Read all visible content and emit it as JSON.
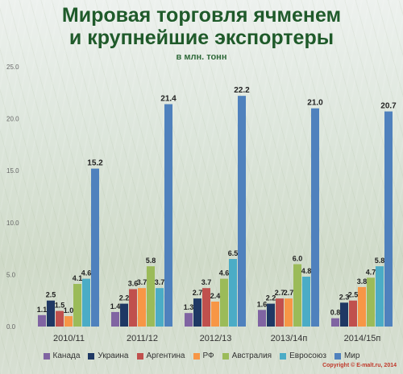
{
  "header": {
    "title_line1": "Мировая торговля ячменем",
    "title_line2": "и крупнейшие экспортеры",
    "subtitle": "в млн. тонн"
  },
  "copyright": "Copyright © E-malt.ru, 2014",
  "chart_data": {
    "type": "bar",
    "categories": [
      "2010/11",
      "2011/12",
      "2012/13",
      "2013/14п",
      "2014/15п"
    ],
    "ylim": [
      0,
      25
    ],
    "yticks": [
      "0.0",
      "5.0",
      "10.0",
      "15.0",
      "20.0",
      "25.0"
    ],
    "grid": false,
    "legend_position": "bottom",
    "series": [
      {
        "name": "Канада",
        "color": "#8064a2",
        "values": [
          1.1,
          1.4,
          1.3,
          1.6,
          0.8
        ]
      },
      {
        "name": "Украина",
        "color": "#1f3864",
        "values": [
          2.5,
          2.2,
          2.7,
          2.2,
          2.3
        ]
      },
      {
        "name": "Аргентина",
        "color": "#c0504d",
        "values": [
          1.5,
          3.6,
          3.7,
          2.7,
          2.5
        ]
      },
      {
        "name": "РФ",
        "color": "#f79646",
        "values": [
          1.0,
          3.7,
          2.4,
          2.7,
          3.8
        ]
      },
      {
        "name": "Австралия",
        "color": "#9bbb59",
        "values": [
          4.1,
          5.8,
          4.6,
          6.0,
          4.7
        ]
      },
      {
        "name": "Евросоюз",
        "color": "#4bacc6",
        "values": [
          4.6,
          3.7,
          6.5,
          4.8,
          5.8
        ]
      },
      {
        "name": "Мир",
        "color": "#4f81bd",
        "values": [
          15.2,
          21.4,
          22.2,
          21.0,
          20.7
        ]
      }
    ]
  }
}
